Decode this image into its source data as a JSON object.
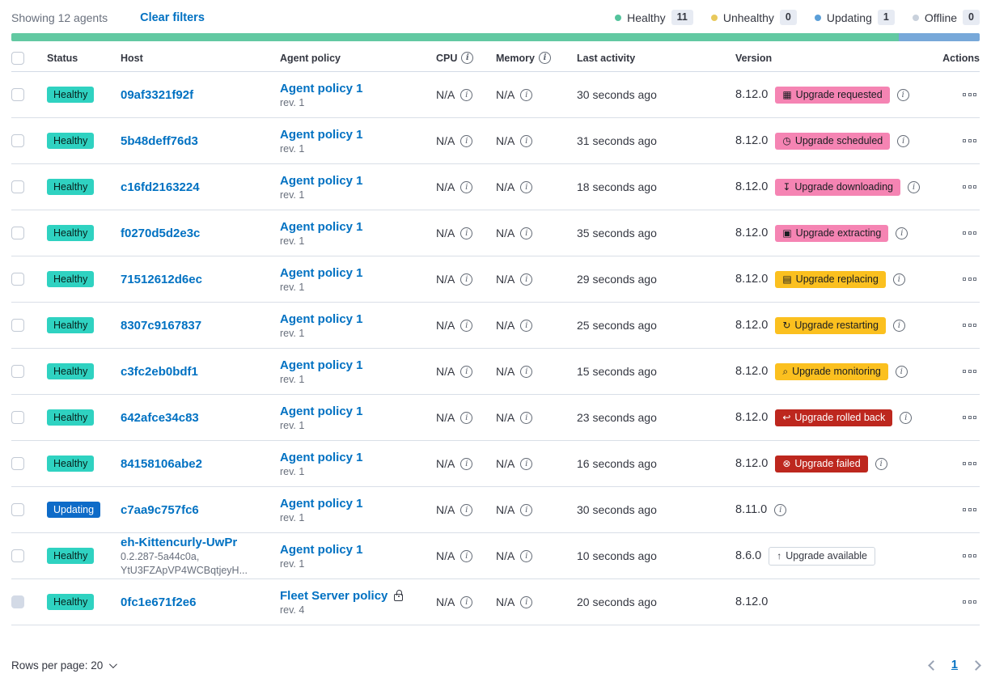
{
  "toolbar": {
    "showing": "Showing 12 agents",
    "clear_filters": "Clear filters"
  },
  "legend": [
    {
      "label": "Healthy",
      "count": "11",
      "color": "#54c39c"
    },
    {
      "label": "Unhealthy",
      "count": "0",
      "color": "#e8c95c"
    },
    {
      "label": "Updating",
      "count": "1",
      "color": "#5b9fd8"
    },
    {
      "label": "Offline",
      "count": "0",
      "color": "#c9d1dc"
    }
  ],
  "health_bar": {
    "segments": [
      {
        "name": "healthy",
        "color": "#62c9a2",
        "weight": 11
      },
      {
        "name": "updating",
        "color": "#77a8d9",
        "weight": 1
      }
    ]
  },
  "table": {
    "headers": [
      {
        "label": "",
        "type": "checkbox"
      },
      {
        "label": "Status"
      },
      {
        "label": "Host"
      },
      {
        "label": "Agent policy"
      },
      {
        "label": "CPU",
        "info": true
      },
      {
        "label": "Memory",
        "info": true
      },
      {
        "label": "Last activity"
      },
      {
        "label": "Version"
      },
      {
        "label": "Actions",
        "align": "right"
      }
    ],
    "rows": [
      {
        "status": "Healthy",
        "status_key": "healthy",
        "host": "09af3321f92f",
        "host_sub": [],
        "policy": "Agent policy 1",
        "rev": "rev. 1",
        "policy_locked": false,
        "cpu": "N/A",
        "memory": "N/A",
        "last_activity": "30 seconds ago",
        "version": "8.12.0",
        "upgrade": {
          "label": "Upgrade requested",
          "tone": "pink",
          "icon": "calendar-icon",
          "glyph": "▦"
        },
        "badge_info": true,
        "version_info": false,
        "checkbox_disabled": false
      },
      {
        "status": "Healthy",
        "status_key": "healthy",
        "host": "5b48deff76d3",
        "host_sub": [],
        "policy": "Agent policy 1",
        "rev": "rev. 1",
        "policy_locked": false,
        "cpu": "N/A",
        "memory": "N/A",
        "last_activity": "31 seconds ago",
        "version": "8.12.0",
        "upgrade": {
          "label": "Upgrade scheduled",
          "tone": "pink",
          "icon": "clock-icon",
          "glyph": "◷"
        },
        "badge_info": true,
        "version_info": false,
        "checkbox_disabled": false
      },
      {
        "status": "Healthy",
        "status_key": "healthy",
        "host": "c16fd2163224",
        "host_sub": [],
        "policy": "Agent policy 1",
        "rev": "rev. 1",
        "policy_locked": false,
        "cpu": "N/A",
        "memory": "N/A",
        "last_activity": "18 seconds ago",
        "version": "8.12.0",
        "upgrade": {
          "label": "Upgrade downloading",
          "tone": "pink",
          "icon": "download-icon",
          "glyph": "↧"
        },
        "badge_info": true,
        "version_info": false,
        "checkbox_disabled": false
      },
      {
        "status": "Healthy",
        "status_key": "healthy",
        "host": "f0270d5d2e3c",
        "host_sub": [],
        "policy": "Agent policy 1",
        "rev": "rev. 1",
        "policy_locked": false,
        "cpu": "N/A",
        "memory": "N/A",
        "last_activity": "35 seconds ago",
        "version": "8.12.0",
        "upgrade": {
          "label": "Upgrade extracting",
          "tone": "pink",
          "icon": "package-icon",
          "glyph": "▣"
        },
        "badge_info": true,
        "version_info": false,
        "checkbox_disabled": false
      },
      {
        "status": "Healthy",
        "status_key": "healthy",
        "host": "71512612d6ec",
        "host_sub": [],
        "policy": "Agent policy 1",
        "rev": "rev. 1",
        "policy_locked": false,
        "cpu": "N/A",
        "memory": "N/A",
        "last_activity": "29 seconds ago",
        "version": "8.12.0",
        "upgrade": {
          "label": "Upgrade replacing",
          "tone": "warning",
          "icon": "copy-icon",
          "glyph": "▤"
        },
        "badge_info": true,
        "version_info": false,
        "checkbox_disabled": false
      },
      {
        "status": "Healthy",
        "status_key": "healthy",
        "host": "8307c9167837",
        "host_sub": [],
        "policy": "Agent policy 1",
        "rev": "rev. 1",
        "policy_locked": false,
        "cpu": "N/A",
        "memory": "N/A",
        "last_activity": "25 seconds ago",
        "version": "8.12.0",
        "upgrade": {
          "label": "Upgrade restarting",
          "tone": "warning",
          "icon": "refresh-icon",
          "glyph": "↻"
        },
        "badge_info": true,
        "version_info": false,
        "checkbox_disabled": false
      },
      {
        "status": "Healthy",
        "status_key": "healthy",
        "host": "c3fc2eb0bdf1",
        "host_sub": [],
        "policy": "Agent policy 1",
        "rev": "rev. 1",
        "policy_locked": false,
        "cpu": "N/A",
        "memory": "N/A",
        "last_activity": "15 seconds ago",
        "version": "8.12.0",
        "upgrade": {
          "label": "Upgrade monitoring",
          "tone": "warning",
          "icon": "inspect-icon",
          "glyph": "⌕"
        },
        "badge_info": true,
        "version_info": false,
        "checkbox_disabled": false
      },
      {
        "status": "Healthy",
        "status_key": "healthy",
        "host": "642afce34c83",
        "host_sub": [],
        "policy": "Agent policy 1",
        "rev": "rev. 1",
        "policy_locked": false,
        "cpu": "N/A",
        "memory": "N/A",
        "last_activity": "23 seconds ago",
        "version": "8.12.0",
        "upgrade": {
          "label": "Upgrade rolled back",
          "tone": "danger",
          "icon": "return-icon",
          "glyph": "↩"
        },
        "badge_info": true,
        "version_info": false,
        "checkbox_disabled": false
      },
      {
        "status": "Healthy",
        "status_key": "healthy",
        "host": "84158106abe2",
        "host_sub": [],
        "policy": "Agent policy 1",
        "rev": "rev. 1",
        "policy_locked": false,
        "cpu": "N/A",
        "memory": "N/A",
        "last_activity": "16 seconds ago",
        "version": "8.12.0",
        "upgrade": {
          "label": "Upgrade failed",
          "tone": "danger",
          "icon": "error-icon",
          "glyph": "⊗"
        },
        "badge_info": true,
        "version_info": false,
        "checkbox_disabled": false
      },
      {
        "status": "Updating",
        "status_key": "updating",
        "host": "c7aa9c757fc6",
        "host_sub": [],
        "policy": "Agent policy 1",
        "rev": "rev. 1",
        "policy_locked": false,
        "cpu": "N/A",
        "memory": "N/A",
        "last_activity": "30 seconds ago",
        "version": "8.11.0",
        "upgrade": null,
        "badge_info": false,
        "version_info": true,
        "checkbox_disabled": false
      },
      {
        "status": "Healthy",
        "status_key": "healthy",
        "host": "eh-Kittencurly-UwPr",
        "host_sub": [
          "0.2.287-5a44c0a,",
          "YtU3FZApVP4WCBqtjeyH..."
        ],
        "policy": "Agent policy 1",
        "rev": "rev. 1",
        "policy_locked": false,
        "cpu": "N/A",
        "memory": "N/A",
        "last_activity": "10 seconds ago",
        "version": "8.6.0",
        "upgrade": {
          "label": "Upgrade available",
          "tone": "hollow",
          "icon": "arrow-up-icon",
          "glyph": "↑"
        },
        "badge_info": false,
        "version_info": false,
        "checkbox_disabled": false
      },
      {
        "status": "Healthy",
        "status_key": "healthy",
        "host": "0fc1e671f2e6",
        "host_sub": [],
        "policy": "Fleet Server policy",
        "rev": "rev. 4",
        "policy_locked": true,
        "cpu": "N/A",
        "memory": "N/A",
        "last_activity": "20 seconds ago",
        "version": "8.12.0",
        "upgrade": null,
        "badge_info": false,
        "version_info": false,
        "checkbox_disabled": true
      }
    ]
  },
  "icons": {
    "info_glyph": "i"
  },
  "footer": {
    "rows_per_page_label": "Rows per page: 20",
    "current_page": "1"
  },
  "colors": {
    "link": "#0071c2",
    "healthy_badge": "#2fd2c1",
    "updating_badge": "#0e6bc8",
    "pink_badge": "#f584b3",
    "warning_badge": "#fbc01f",
    "danger_badge": "#bd271e"
  }
}
